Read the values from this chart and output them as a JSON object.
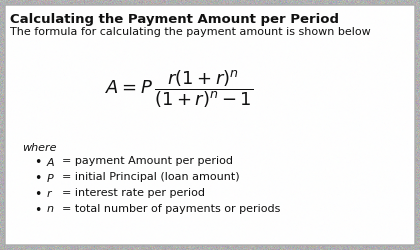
{
  "title": "Calculating the Payment Amount per Period",
  "subtitle": "The formula for calculating the payment amount is shown below",
  "where_label": "where",
  "bullets": [
    [
      "A",
      "= payment Amount per period"
    ],
    [
      "P",
      "= initial Principal (loan amount)"
    ],
    [
      "r",
      "= interest rate per period"
    ],
    [
      "n",
      "= total number of payments or periods"
    ]
  ],
  "text_color": "#111111",
  "title_fontsize": 9.5,
  "body_fontsize": 8.0,
  "formula_fontsize": 13,
  "fig_bg": "#b0b0b0",
  "card_bg": "#ffffff",
  "border_color": "#aaaaaa"
}
